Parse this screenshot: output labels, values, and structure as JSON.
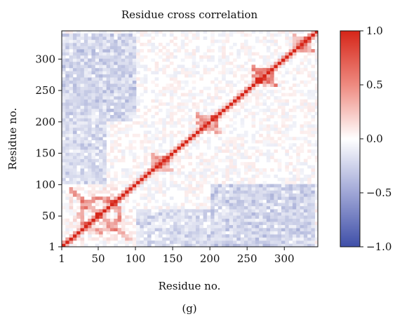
{
  "chart_data": {
    "type": "heatmap",
    "title": "Residue cross correlation",
    "xlabel": "Residue no.",
    "ylabel": "Residue no.",
    "x_ticks": [
      1,
      50,
      100,
      150,
      200,
      250,
      300
    ],
    "y_ticks": [
      1,
      50,
      100,
      150,
      200,
      250,
      300
    ],
    "xlim": [
      1,
      345
    ],
    "ylim": [
      1,
      345
    ],
    "colorbar": {
      "ticks": [
        1.0,
        0.5,
        0.0,
        -0.5,
        -1.0
      ],
      "tick_labels": [
        "1.0",
        "0.5",
        "0.0",
        "−0.5",
        "−1.0"
      ],
      "range": [
        -1.0,
        1.0
      ],
      "colormap": "bwr",
      "colors": {
        "low": "#3f4fa8",
        "mid": "#ffffff",
        "high": "#d62518"
      }
    },
    "grid": false,
    "features": {
      "diagonal_value": 1.0,
      "positive_blocks": [
        {
          "x_range": [
            10,
            95
          ],
          "y_range": [
            10,
            95
          ],
          "value": 0.5
        },
        {
          "x_range": [
            180,
            215
          ],
          "y_range": [
            180,
            215
          ],
          "value": 0.4
        },
        {
          "x_range": [
            255,
            290
          ],
          "y_range": [
            255,
            290
          ],
          "value": 0.55
        },
        {
          "x_range": [
            120,
            150
          ],
          "y_range": [
            120,
            150
          ],
          "value": 0.35
        },
        {
          "x_range": [
            310,
            340
          ],
          "y_range": [
            310,
            340
          ],
          "value": 0.4
        }
      ],
      "negative_regions": [
        {
          "x_range": [
            1,
            100
          ],
          "y_range": [
            200,
            340
          ],
          "value": -0.25
        },
        {
          "x_range": [
            200,
            340
          ],
          "y_range": [
            1,
            100
          ],
          "value": -0.25
        },
        {
          "x_range": [
            100,
            200
          ],
          "y_range": [
            1,
            60
          ],
          "value": -0.2
        },
        {
          "x_range": [
            1,
            60
          ],
          "y_range": [
            100,
            200
          ],
          "value": -0.2
        }
      ]
    }
  },
  "caption": "(g)"
}
